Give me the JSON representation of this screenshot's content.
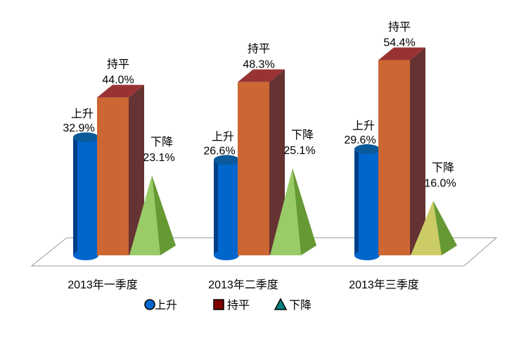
{
  "chart_data": {
    "type": "bar",
    "style": "3d",
    "categories": [
      "2013年一季度",
      "2013年二季度",
      "2013年三季度"
    ],
    "series": [
      {
        "name": "上升",
        "values": [
          32.9,
          26.6,
          29.6
        ],
        "shape": "cylinder",
        "color": "#0066cc",
        "legend_color": "#0066cc"
      },
      {
        "name": "持平",
        "values": [
          44.0,
          48.3,
          54.4
        ],
        "shape": "box",
        "color": "#cc6633",
        "legend_color": "#800000"
      },
      {
        "name": "下降",
        "values": [
          23.1,
          25.1,
          16.0
        ],
        "shape": "pyramid",
        "color": "#99cc66",
        "legend_color": "#008080"
      }
    ],
    "data_labels": [
      [
        "32.9%",
        "26.6%",
        "29.6%"
      ],
      [
        "44.0%",
        "48.3%",
        "54.4%"
      ],
      [
        "23.1%",
        "25.1%",
        "16.0%"
      ]
    ],
    "legend": "bottom",
    "grid": false
  }
}
